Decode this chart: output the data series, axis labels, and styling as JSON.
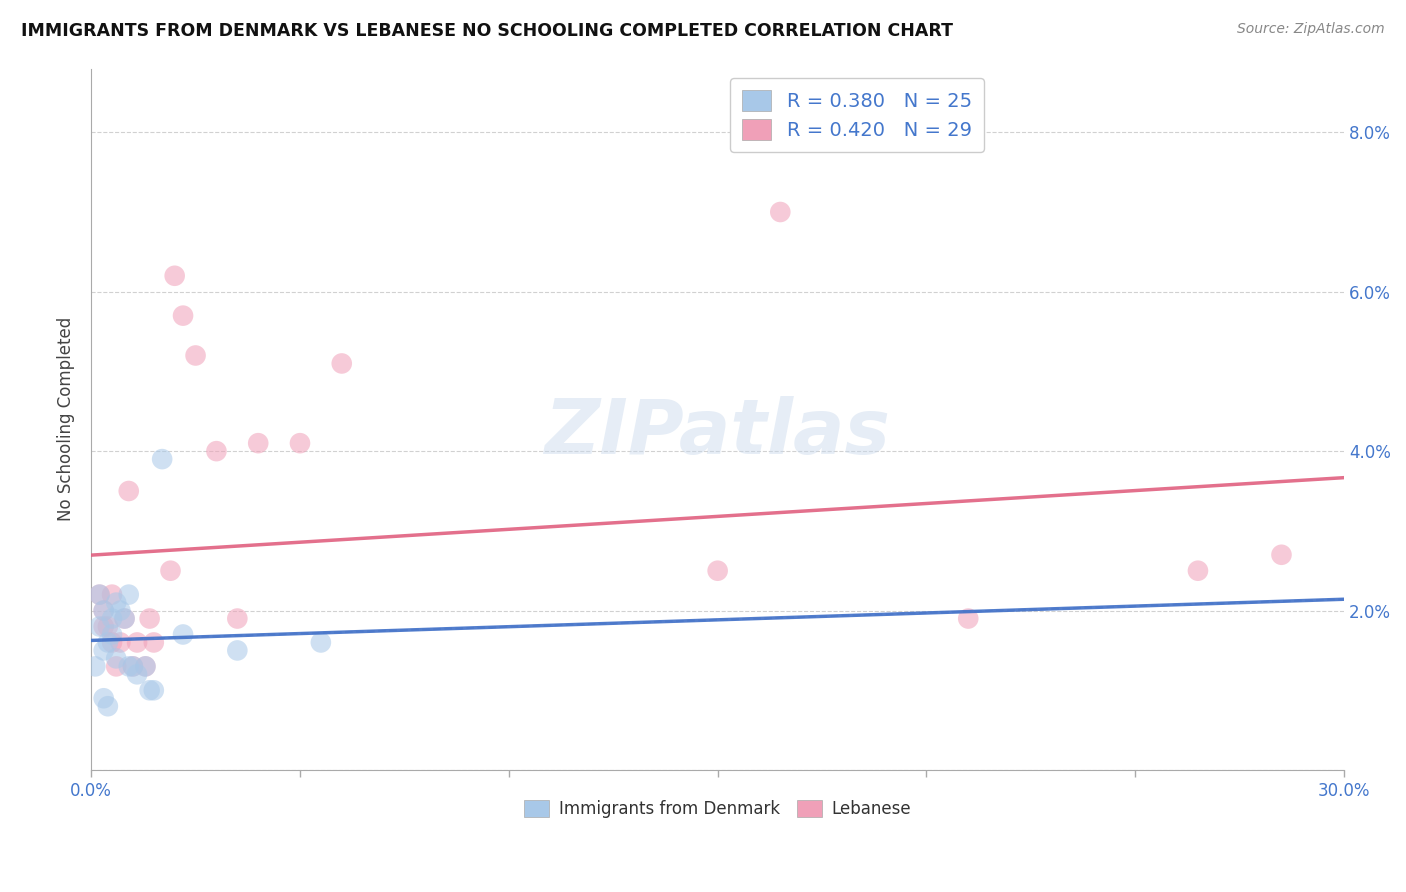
{
  "title": "IMMIGRANTS FROM DENMARK VS LEBANESE NO SCHOOLING COMPLETED CORRELATION CHART",
  "source": "Source: ZipAtlas.com",
  "ylabel": "No Schooling Completed",
  "xlim": [
    0.0,
    0.3
  ],
  "ylim": [
    0.0,
    0.088
  ],
  "xticks": [
    0.0,
    0.05,
    0.1,
    0.15,
    0.2,
    0.25,
    0.3
  ],
  "xticklabels": [
    "0.0%",
    "",
    "",
    "",
    "",
    "",
    "30.0%"
  ],
  "yticks": [
    0.0,
    0.02,
    0.04,
    0.06,
    0.08
  ],
  "yticklabels_right": [
    "",
    "2.0%",
    "4.0%",
    "6.0%",
    "8.0%"
  ],
  "denmark_R": 0.38,
  "denmark_N": 25,
  "lebanese_R": 0.42,
  "lebanese_N": 29,
  "denmark_color": "#a8c8e8",
  "lebanese_color": "#f0a0b8",
  "denmark_line_color": "#4070c8",
  "lebanese_line_color": "#e06080",
  "denmark_scatter": [
    [
      0.001,
      0.013
    ],
    [
      0.002,
      0.018
    ],
    [
      0.002,
      0.022
    ],
    [
      0.003,
      0.015
    ],
    [
      0.003,
      0.02
    ],
    [
      0.004,
      0.016
    ],
    [
      0.005,
      0.019
    ],
    [
      0.005,
      0.017
    ],
    [
      0.006,
      0.021
    ],
    [
      0.006,
      0.014
    ],
    [
      0.007,
      0.02
    ],
    [
      0.008,
      0.019
    ],
    [
      0.009,
      0.022
    ],
    [
      0.009,
      0.013
    ],
    [
      0.01,
      0.013
    ],
    [
      0.011,
      0.012
    ],
    [
      0.013,
      0.013
    ],
    [
      0.014,
      0.01
    ],
    [
      0.015,
      0.01
    ],
    [
      0.017,
      0.039
    ],
    [
      0.022,
      0.017
    ],
    [
      0.035,
      0.015
    ],
    [
      0.055,
      0.016
    ],
    [
      0.003,
      0.009
    ],
    [
      0.004,
      0.008
    ]
  ],
  "lebanese_scatter": [
    [
      0.002,
      0.022
    ],
    [
      0.003,
      0.02
    ],
    [
      0.003,
      0.018
    ],
    [
      0.004,
      0.018
    ],
    [
      0.005,
      0.022
    ],
    [
      0.005,
      0.016
    ],
    [
      0.006,
      0.013
    ],
    [
      0.007,
      0.016
    ],
    [
      0.008,
      0.019
    ],
    [
      0.009,
      0.035
    ],
    [
      0.01,
      0.013
    ],
    [
      0.011,
      0.016
    ],
    [
      0.013,
      0.013
    ],
    [
      0.014,
      0.019
    ],
    [
      0.015,
      0.016
    ],
    [
      0.019,
      0.025
    ],
    [
      0.02,
      0.062
    ],
    [
      0.022,
      0.057
    ],
    [
      0.025,
      0.052
    ],
    [
      0.03,
      0.04
    ],
    [
      0.035,
      0.019
    ],
    [
      0.04,
      0.041
    ],
    [
      0.05,
      0.041
    ],
    [
      0.06,
      0.051
    ],
    [
      0.15,
      0.025
    ],
    [
      0.165,
      0.07
    ],
    [
      0.21,
      0.019
    ],
    [
      0.265,
      0.025
    ],
    [
      0.285,
      0.027
    ]
  ],
  "watermark": "ZIPatlas",
  "background_color": "#ffffff",
  "grid_color": "#cccccc",
  "legend_R_color": "#4477cc",
  "legend_N_color": "#4477cc"
}
